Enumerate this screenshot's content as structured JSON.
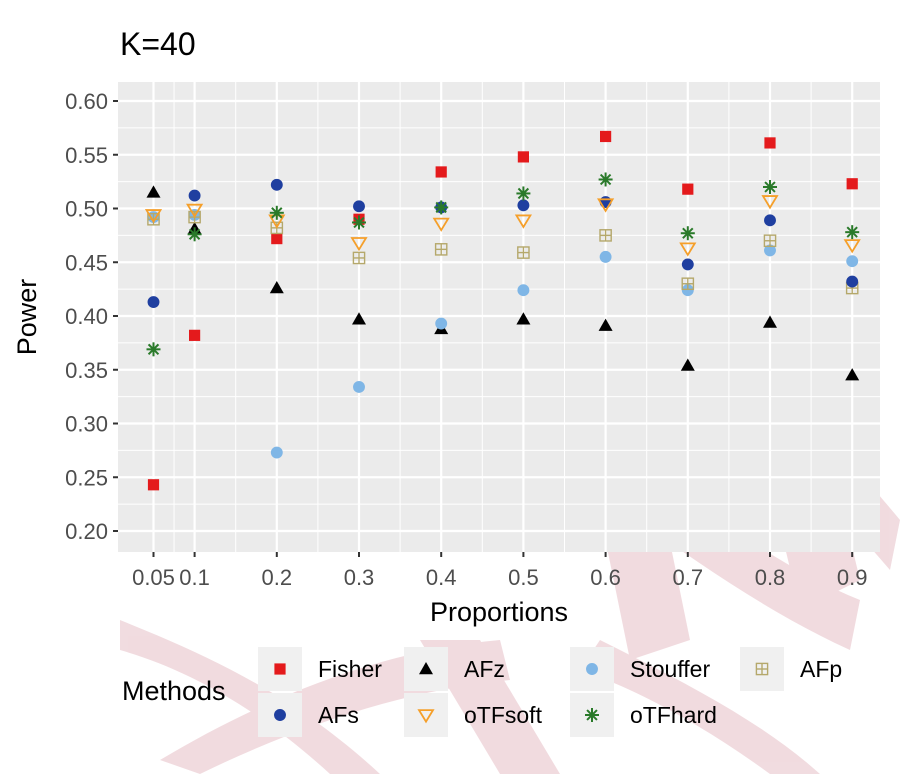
{
  "chart_data": {
    "type": "scatter",
    "title": "K=40",
    "xlabel": "Proportions",
    "ylabel": "Power",
    "x": [
      0.05,
      0.1,
      0.2,
      0.3,
      0.4,
      0.5,
      0.6,
      0.7,
      0.8,
      0.9
    ],
    "x_tick_labels": [
      "0.05",
      "0.1",
      "0.2",
      "0.3",
      "0.4",
      "0.5",
      "0.6",
      "0.7",
      "0.8",
      "0.9"
    ],
    "y_ticks": [
      0.2,
      0.25,
      0.3,
      0.35,
      0.4,
      0.45,
      0.5,
      0.55,
      0.6
    ],
    "y_tick_labels": [
      "0.20",
      "0.25",
      "0.30",
      "0.35",
      "0.40",
      "0.45",
      "0.50",
      "0.55",
      "0.60"
    ],
    "ylim": [
      0.19,
      0.62
    ],
    "x_scale": "categorical",
    "grid": true,
    "legend": {
      "title": "Methods",
      "position": "bottom"
    },
    "series": [
      {
        "name": "Fisher",
        "shape": "square",
        "color": "#e41a1c",
        "values": [
          0.243,
          0.382,
          0.472,
          0.49,
          0.534,
          0.548,
          0.567,
          0.518,
          0.561,
          0.523
        ]
      },
      {
        "name": "AFz",
        "shape": "triangle",
        "color": "#000000",
        "values": [
          0.515,
          0.481,
          0.426,
          0.397,
          0.388,
          0.397,
          0.391,
          0.354,
          0.394,
          0.345
        ]
      },
      {
        "name": "Stouffer",
        "shape": "circle",
        "color": "#7fb6e6",
        "values": [
          0.492,
          0.494,
          0.273,
          0.334,
          0.393,
          0.424,
          0.455,
          0.424,
          0.461,
          0.451
        ]
      },
      {
        "name": "AFp",
        "shape": "square-plus",
        "color": "#b5a86b",
        "values": [
          0.49,
          0.492,
          0.482,
          0.454,
          0.462,
          0.459,
          0.475,
          0.43,
          0.47,
          0.426
        ]
      },
      {
        "name": "AFs",
        "shape": "circle",
        "color": "#1f3fa0",
        "values": [
          0.413,
          0.512,
          0.522,
          0.502,
          0.501,
          0.503,
          0.506,
          0.448,
          0.489,
          0.432
        ]
      },
      {
        "name": "oTFsoft",
        "shape": "triangle-down",
        "color": "#f59f2a",
        "values": [
          0.494,
          0.499,
          0.489,
          0.468,
          0.486,
          0.489,
          0.504,
          0.463,
          0.507,
          0.466
        ]
      },
      {
        "name": "oTFhard",
        "shape": "asterisk",
        "color": "#2a7a2a",
        "values": [
          0.369,
          0.476,
          0.496,
          0.487,
          0.501,
          0.514,
          0.527,
          0.477,
          0.52,
          0.478
        ]
      }
    ]
  },
  "colors": {
    "panel_background": "#ebebeb",
    "grid_major": "#ffffff",
    "watermark": "#d89aa5"
  }
}
